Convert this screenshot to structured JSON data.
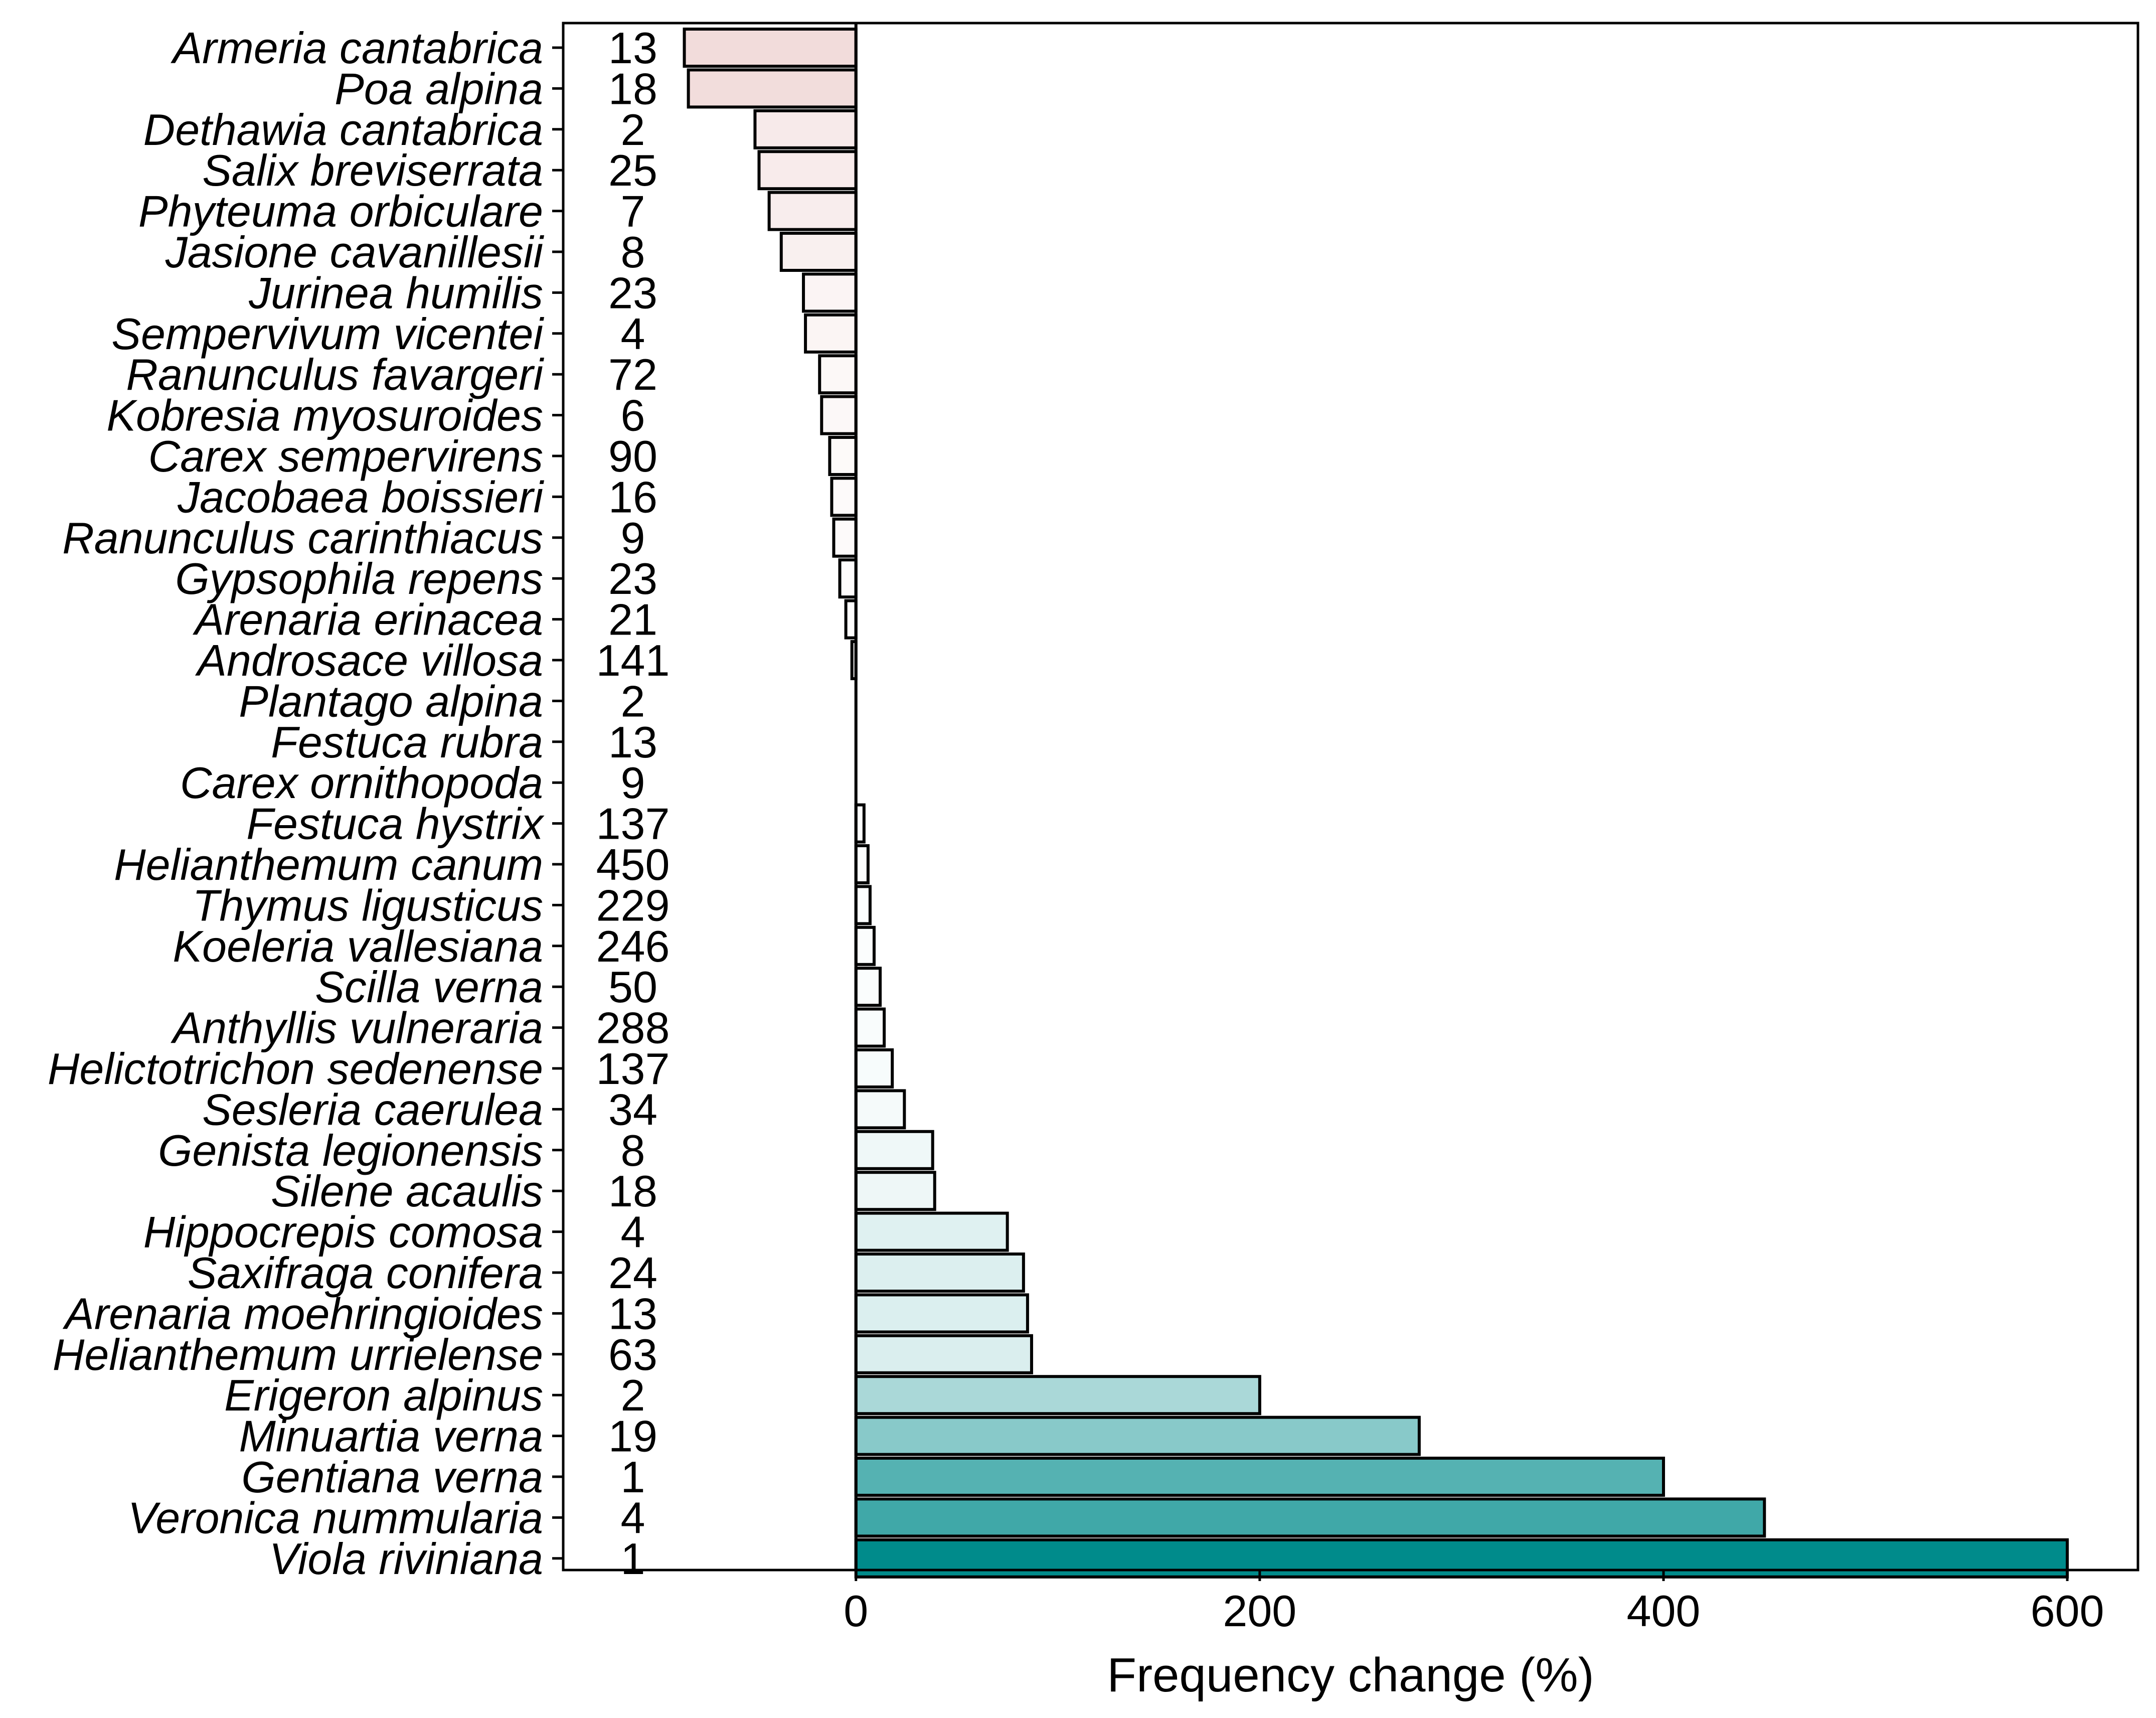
{
  "chart_data": {
    "type": "bar",
    "orientation": "horizontal",
    "title": "",
    "xlabel": "Frequency change (%)",
    "ylabel": "",
    "xlim": [
      -145,
      635
    ],
    "x_ticks": [
      0,
      200,
      400,
      600
    ],
    "grid": false,
    "legend": "none",
    "fill_scale": {
      "negative": "#f2dcdb",
      "zero": "#ffffff",
      "positive": "#008b8b"
    },
    "categories": [
      "Armeria cantabrica",
      "Poa alpina",
      "Dethawia cantabrica",
      "Salix breviserrata",
      "Phyteuma orbiculare",
      "Jasione cavanillesii",
      "Jurinea humilis",
      "Sempervivum vicentei",
      "Ranunculus favargeri",
      "Kobresia myosuroides",
      "Carex sempervirens",
      "Jacobaea boissieri",
      "Ranunculus carinthiacus",
      "Gypsophila repens",
      "Arenaria erinacea",
      "Androsace villosa",
      "Plantago alpina",
      "Festuca rubra",
      "Carex ornithopoda",
      "Festuca hystrix",
      "Helianthemum canum",
      "Thymus ligusticus",
      "Koeleria vallesiana",
      "Scilla verna",
      "Anthyllis vulneraria",
      "Helictotrichon sedenense",
      "Sesleria caerulea",
      "Genista legionensis",
      "Silene acaulis",
      "Hippocrepis comosa",
      "Saxifraga conifera",
      "Arenaria moehringioides",
      "Helianthemum urrielense",
      "Erigeron alpinus",
      "Minuartia verna",
      "Gentiana verna",
      "Veronica nummularia",
      "Viola riviniana"
    ],
    "counts": [
      "13",
      "18",
      "2",
      "25",
      "7",
      "8",
      "23",
      "4",
      "72",
      "6",
      "90",
      "16",
      "9",
      "23",
      "21",
      "141",
      "2",
      "13",
      "9",
      "137",
      "450",
      "229",
      "246",
      "50",
      "288",
      "137",
      "34",
      "8",
      "18",
      "4",
      "24",
      "13",
      "63",
      "2",
      "19",
      "1",
      "4",
      "1"
    ],
    "values": [
      -85,
      -83,
      -50,
      -48,
      -43,
      -37,
      -26,
      -25,
      -18,
      -17,
      -13,
      -12,
      -11,
      -8,
      -5,
      -2,
      0,
      0,
      0,
      4,
      6,
      7,
      9,
      12,
      14,
      18,
      24,
      38,
      39,
      75,
      83,
      85,
      87,
      200,
      279,
      400,
      450,
      600
    ]
  }
}
